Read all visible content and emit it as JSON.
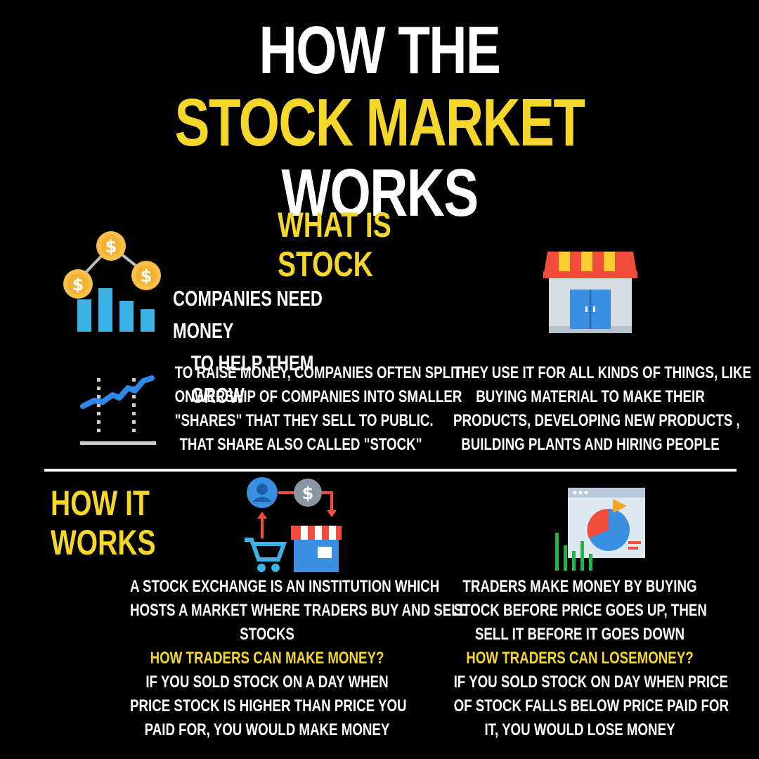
{
  "title": {
    "line1": "HOW THE",
    "line2_highlight": "STOCK MARKET",
    "line2_rest": "WORKS"
  },
  "section1": {
    "heading": "WHAT IS STOCK",
    "block1": [
      "COMPANIES NEED MONEY",
      "TO HELP THEM GROW"
    ],
    "block2": [
      "TO RAISE MONEY, COMPANIES OFTEN SPLIT",
      "ONWERSHIP OF COMPANIES INTO SMALLER",
      "\"SHARES\" THAT THEY SELL TO PUBLIC.",
      "THAT SHARE ALSO CALLED \"STOCK\""
    ],
    "block3": [
      "THEY USE IT FOR ALL KINDS OF THINGS, LIKE",
      "BUYING MATERIAL TO MAKE THEIR",
      "PRODUCTS, DEVELOPING NEW PRODUCTS ,",
      "BUILDING PLANTS AND HIRING PEOPLE"
    ]
  },
  "section2": {
    "heading": "HOW IT WORKS",
    "left": {
      "lines": [
        "A STOCK EXCHANGE IS AN INSTITUTION WHICH",
        "HOSTS A MARKET WHERE TRADERS BUY AND SELL",
        "STOCKS"
      ],
      "subheading": "HOW TRADERS CAN MAKE MONEY?",
      "answer": [
        "IF YOU SOLD STOCK ON A DAY WHEN",
        "PRICE STOCK IS HIGHER THAN PRICE YOU",
        "PAID FOR, YOU WOULD MAKE MONEY"
      ]
    },
    "right": {
      "lines": [
        "TRADERS MAKE MONEY BY BUYING",
        "STOCK BEFORE PRICE GOES UP, THEN",
        "SELL IT BEFORE IT GOES DOWN"
      ],
      "subheading": "HOW TRADERS CAN LOSEMONEY?",
      "answer": [
        "IF YOU SOLD STOCK ON DAY WHEN PRICE",
        "OF STOCK FALLS BELOW PRICE PAID FOR",
        "IT, YOU WOULD LOSE MONEY"
      ]
    }
  },
  "colors": {
    "background": "#000000",
    "accent": "#f5d62a",
    "text": "#ffffff"
  },
  "icons": [
    "dollar-coins-chart-icon",
    "storefront-icon",
    "trend-line-chart-icon",
    "exchange-cycle-icon",
    "analytics-dashboard-icon"
  ]
}
